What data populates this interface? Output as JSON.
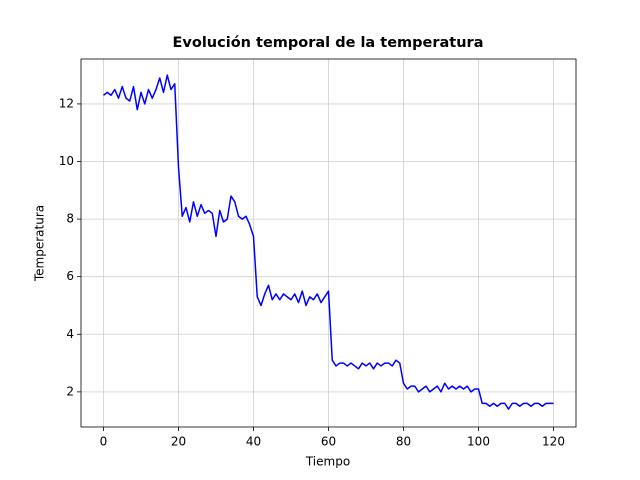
{
  "chart_data": {
    "type": "line",
    "title": "Evolución temporal de la temperatura",
    "x_label": "Tiempo",
    "y_label": "Temperatura",
    "x": [
      0,
      1,
      2,
      3,
      4,
      5,
      6,
      7,
      8,
      9,
      10,
      11,
      12,
      13,
      14,
      15,
      16,
      17,
      18,
      19,
      20,
      21,
      22,
      23,
      24,
      25,
      26,
      27,
      28,
      29,
      30,
      31,
      32,
      33,
      34,
      35,
      36,
      37,
      38,
      39,
      40,
      41,
      42,
      43,
      44,
      45,
      46,
      47,
      48,
      49,
      50,
      51,
      52,
      53,
      54,
      55,
      56,
      57,
      58,
      59,
      60,
      61,
      62,
      63,
      64,
      65,
      66,
      67,
      68,
      69,
      70,
      71,
      72,
      73,
      74,
      75,
      76,
      77,
      78,
      79,
      80,
      81,
      82,
      83,
      84,
      85,
      86,
      87,
      88,
      89,
      90,
      91,
      92,
      93,
      94,
      95,
      96,
      97,
      98,
      99,
      100,
      101,
      102,
      103,
      104,
      105,
      106,
      107,
      108,
      109,
      110,
      111,
      112,
      113,
      114,
      115,
      116,
      117,
      118,
      119,
      120
    ],
    "series": [
      {
        "name": "Temperatura",
        "color": "#0000ff",
        "values": [
          12.3,
          12.4,
          12.3,
          12.5,
          12.2,
          12.6,
          12.2,
          12.1,
          12.6,
          11.8,
          12.4,
          12.0,
          12.5,
          12.2,
          12.5,
          12.9,
          12.4,
          13.0,
          12.5,
          12.7,
          9.8,
          8.1,
          8.4,
          7.9,
          8.6,
          8.1,
          8.5,
          8.2,
          8.3,
          8.2,
          7.4,
          8.3,
          7.9,
          8.0,
          8.8,
          8.6,
          8.1,
          8.0,
          8.1,
          7.8,
          7.4,
          5.3,
          5.0,
          5.4,
          5.7,
          5.2,
          5.4,
          5.2,
          5.4,
          5.3,
          5.2,
          5.4,
          5.1,
          5.5,
          5.0,
          5.3,
          5.2,
          5.4,
          5.1,
          5.3,
          5.5,
          3.1,
          2.9,
          3.0,
          3.0,
          2.9,
          3.0,
          2.9,
          2.8,
          3.0,
          2.9,
          3.0,
          2.8,
          3.0,
          2.9,
          3.0,
          3.0,
          2.9,
          3.1,
          3.0,
          2.3,
          2.1,
          2.2,
          2.2,
          2.0,
          2.1,
          2.2,
          2.0,
          2.1,
          2.2,
          2.0,
          2.3,
          2.1,
          2.2,
          2.1,
          2.2,
          2.1,
          2.2,
          2.0,
          2.1,
          2.1,
          1.6,
          1.6,
          1.5,
          1.6,
          1.5,
          1.6,
          1.6,
          1.4,
          1.6,
          1.6,
          1.5,
          1.6,
          1.6,
          1.5,
          1.6,
          1.6,
          1.5,
          1.6,
          1.6,
          1.6
        ]
      }
    ],
    "xlim": [
      -6,
      126
    ],
    "ylim": [
      0.78,
      13.56
    ],
    "xticks": [
      0,
      20,
      40,
      60,
      80,
      100,
      120
    ],
    "yticks": [
      2,
      4,
      6,
      8,
      10,
      12
    ],
    "grid": true
  }
}
